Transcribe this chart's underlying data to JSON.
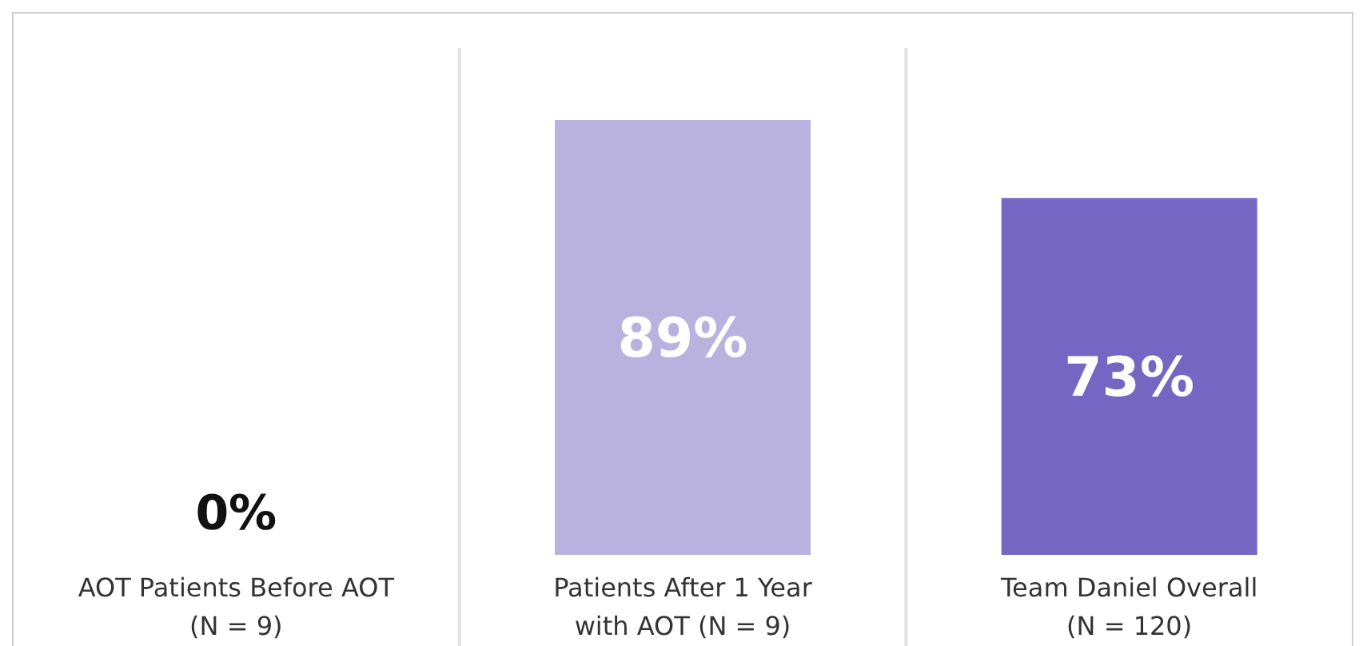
{
  "chart_data": {
    "type": "bar",
    "categories": [
      "AOT Patients Before AOT\n(N = 9)",
      "Patients After 1 Year\nwith AOT (N = 9)",
      "Team Daniel Overall\n(N = 120)"
    ],
    "values": [
      0,
      89,
      73
    ],
    "colors": [
      "#b9b2de",
      "#b9b2de",
      "#7466c2"
    ],
    "value_labels": [
      "0%",
      "89%",
      "73%"
    ]
  }
}
